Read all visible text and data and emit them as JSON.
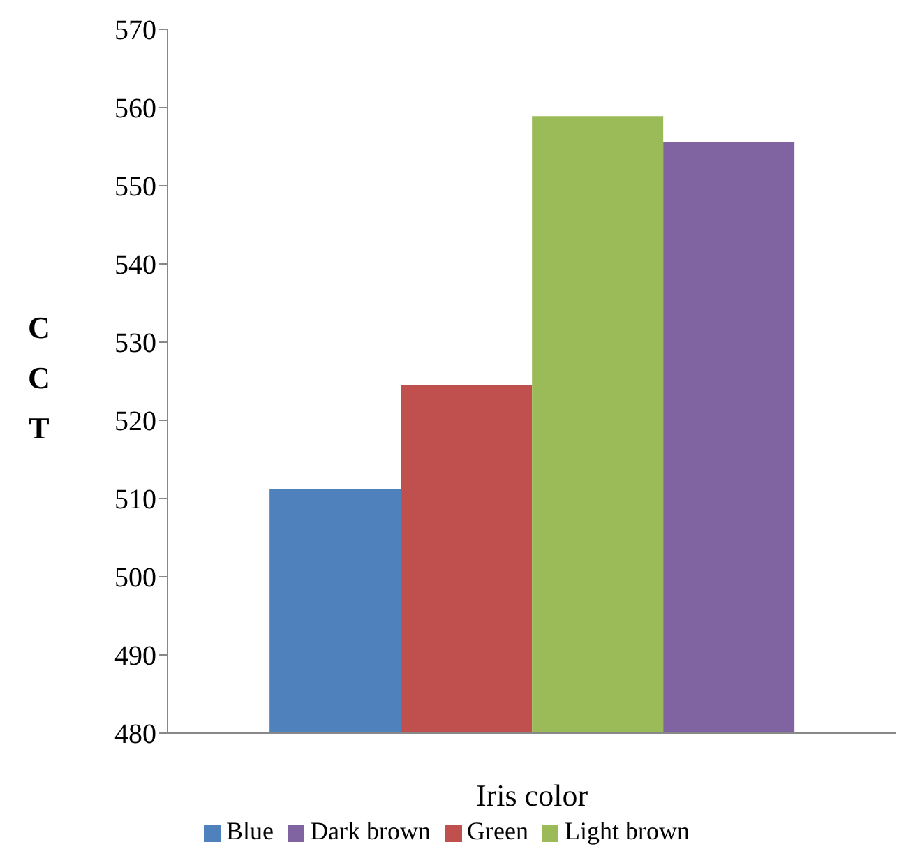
{
  "chart_data": {
    "type": "bar",
    "xlabel": "Iris color",
    "ylabel": "CCT",
    "categories": [
      null
    ],
    "series": [
      {
        "name": "Blue",
        "color": "#4f81bd",
        "values": [
          511.2
        ]
      },
      {
        "name": "Green",
        "color": "#c0504d",
        "values": [
          524.5
        ]
      },
      {
        "name": "Light brown",
        "color": "#9bbb59",
        "values": [
          558.9
        ]
      },
      {
        "name": "Dark brown",
        "color": "#8064a2",
        "values": [
          555.6
        ]
      }
    ],
    "ylim": [
      480,
      570
    ],
    "yticks": [
      480,
      490,
      500,
      510,
      520,
      530,
      540,
      550,
      560,
      570
    ],
    "grid": false,
    "legend": "bottom"
  }
}
